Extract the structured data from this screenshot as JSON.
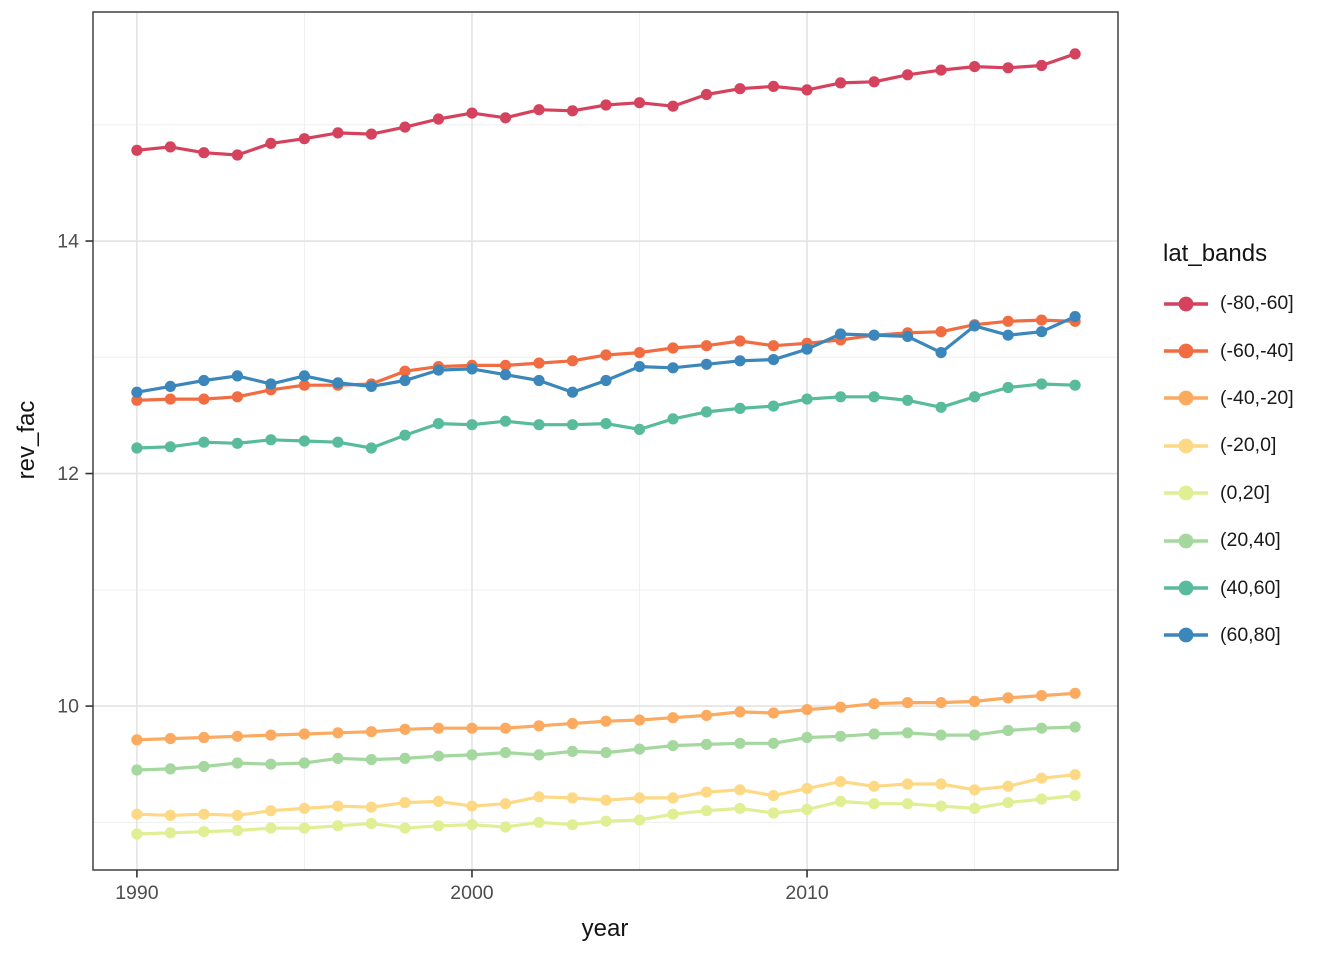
{
  "chart_data": {
    "type": "line",
    "title": "",
    "xlabel": "year",
    "ylabel": "rev_fac",
    "legend_title": "lat_bands",
    "legend_position": "right",
    "grid": true,
    "panel_border_color": "#404040",
    "major_grid_color": "#e3e3e3",
    "minor_grid_color": "#efefef",
    "tick_label_color": "#4d4d4d",
    "x_ticks": [
      1990,
      2000,
      2010
    ],
    "x_minor_ticks": [
      1995,
      2005,
      2015
    ],
    "y_ticks": [
      10,
      12,
      14
    ],
    "y_minor_ticks": [
      9,
      11,
      13,
      15
    ],
    "xlim": [
      1988.69,
      2019.28
    ],
    "ylim": [
      8.59,
      15.97
    ],
    "x": [
      1990,
      1991,
      1992,
      1993,
      1994,
      1995,
      1996,
      1997,
      1998,
      1999,
      2000,
      2001,
      2002,
      2003,
      2004,
      2005,
      2006,
      2007,
      2008,
      2009,
      2010,
      2011,
      2012,
      2013,
      2014,
      2015,
      2016,
      2017,
      2018
    ],
    "series": [
      {
        "name": "(-80,-60]",
        "color": "#d5425d",
        "values": [
          14.78,
          14.81,
          14.76,
          14.74,
          14.84,
          14.88,
          14.93,
          14.92,
          14.98,
          15.05,
          15.1,
          15.06,
          15.13,
          15.12,
          15.17,
          15.19,
          15.16,
          15.26,
          15.31,
          15.33,
          15.3,
          15.36,
          15.37,
          15.43,
          15.47,
          15.5,
          15.49,
          15.51,
          15.61
        ]
      },
      {
        "name": "(-60,-40]",
        "color": "#f16c41",
        "values": [
          12.63,
          12.64,
          12.64,
          12.66,
          12.72,
          12.76,
          12.76,
          12.77,
          12.88,
          12.92,
          12.93,
          12.93,
          12.95,
          12.97,
          13.02,
          13.04,
          13.08,
          13.1,
          13.14,
          13.1,
          13.12,
          13.15,
          13.19,
          13.21,
          13.22,
          13.28,
          13.31,
          13.32,
          13.31
        ]
      },
      {
        "name": "(-40,-20]",
        "color": "#fbaa60",
        "values": [
          9.71,
          9.72,
          9.73,
          9.74,
          9.75,
          9.76,
          9.77,
          9.78,
          9.8,
          9.81,
          9.81,
          9.81,
          9.83,
          9.85,
          9.87,
          9.88,
          9.9,
          9.92,
          9.95,
          9.94,
          9.97,
          9.99,
          10.02,
          10.03,
          10.03,
          10.04,
          10.07,
          10.09,
          10.11
        ]
      },
      {
        "name": "(-20,0]",
        "color": "#fdd985",
        "values": [
          9.07,
          9.06,
          9.07,
          9.06,
          9.1,
          9.12,
          9.14,
          9.13,
          9.17,
          9.18,
          9.14,
          9.16,
          9.22,
          9.21,
          9.19,
          9.21,
          9.21,
          9.26,
          9.28,
          9.23,
          9.29,
          9.35,
          9.31,
          9.33,
          9.33,
          9.28,
          9.31,
          9.38,
          9.41
        ]
      },
      {
        "name": "(0,20]",
        "color": "#e0ef93",
        "values": [
          8.9,
          8.91,
          8.92,
          8.93,
          8.95,
          8.95,
          8.97,
          8.99,
          8.95,
          8.97,
          8.98,
          8.96,
          9.0,
          8.98,
          9.01,
          9.02,
          9.07,
          9.1,
          9.12,
          9.08,
          9.11,
          9.18,
          9.16,
          9.16,
          9.14,
          9.12,
          9.17,
          9.2,
          9.23
        ]
      },
      {
        "name": "(20,40]",
        "color": "#a4d89f",
        "values": [
          9.45,
          9.46,
          9.48,
          9.51,
          9.5,
          9.51,
          9.55,
          9.54,
          9.55,
          9.57,
          9.58,
          9.6,
          9.58,
          9.61,
          9.6,
          9.63,
          9.66,
          9.67,
          9.68,
          9.68,
          9.73,
          9.74,
          9.76,
          9.77,
          9.75,
          9.75,
          9.79,
          9.81,
          9.82
        ]
      },
      {
        "name": "(40,60]",
        "color": "#58bb9b",
        "values": [
          12.22,
          12.23,
          12.27,
          12.26,
          12.29,
          12.28,
          12.27,
          12.22,
          12.33,
          12.43,
          12.42,
          12.45,
          12.42,
          12.42,
          12.43,
          12.38,
          12.47,
          12.53,
          12.56,
          12.58,
          12.64,
          12.66,
          12.66,
          12.63,
          12.57,
          12.66,
          12.74,
          12.77,
          12.76
        ]
      },
      {
        "name": "(60,80]",
        "color": "#3b86ba",
        "values": [
          12.7,
          12.75,
          12.8,
          12.84,
          12.77,
          12.84,
          12.78,
          12.75,
          12.8,
          12.89,
          12.9,
          12.85,
          12.8,
          12.7,
          12.8,
          12.92,
          12.91,
          12.94,
          12.97,
          12.98,
          13.07,
          13.2,
          13.19,
          13.18,
          13.04,
          13.27,
          13.19,
          13.22,
          13.35
        ]
      }
    ]
  }
}
